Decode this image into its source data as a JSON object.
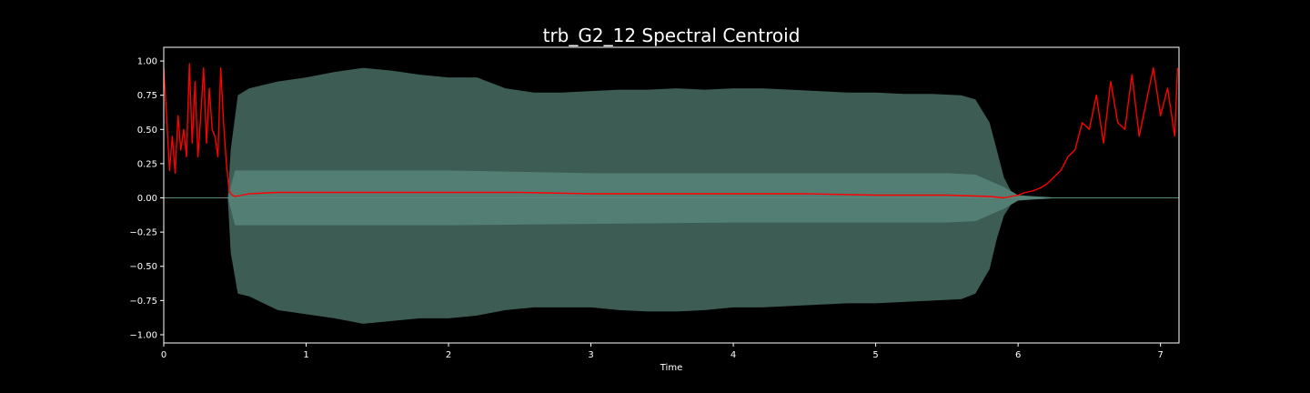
{
  "chart_data": {
    "type": "line",
    "title": "trb_G2_12 Spectral Centroid",
    "xlabel": "Time",
    "ylabel": "",
    "xlim": [
      0,
      7.13
    ],
    "ylim": [
      -1.06,
      1.1
    ],
    "grid": false,
    "x_ticks": [
      0,
      1,
      2,
      3,
      4,
      5,
      6,
      7
    ],
    "x_tick_labels": [
      "0",
      "1",
      "2",
      "3",
      "4",
      "5",
      "6",
      "7"
    ],
    "y_ticks": [
      1.0,
      0.75,
      0.5,
      0.25,
      0.0,
      -0.25,
      -0.5,
      -0.75,
      -1.0
    ],
    "y_tick_labels": [
      "1.00",
      "0.75",
      "0.50",
      "0.25",
      "0.00",
      "−0.25",
      "−0.50",
      "−0.75",
      "−1.00"
    ],
    "colors": {
      "background": "#000000",
      "waveform_outer": "#3c5c54",
      "waveform_inner": "#5a8a7e",
      "centroid": "#ff0000",
      "axes": "#ffffff"
    },
    "series": [
      {
        "kind": "waveform_envelope",
        "color": "#3c5c54",
        "x": [
          0,
          0.45,
          0.47,
          0.52,
          0.6,
          0.8,
          1.0,
          1.2,
          1.4,
          1.6,
          1.8,
          2.0,
          2.2,
          2.4,
          2.6,
          2.8,
          3.0,
          3.2,
          3.4,
          3.6,
          3.8,
          4.0,
          4.2,
          4.4,
          4.6,
          4.8,
          5.0,
          5.2,
          5.4,
          5.6,
          5.7,
          5.8,
          5.85,
          5.9,
          5.95,
          6.0,
          6.1,
          6.3,
          7.13
        ],
        "upper": [
          0,
          0,
          0.35,
          0.75,
          0.8,
          0.85,
          0.88,
          0.92,
          0.95,
          0.93,
          0.9,
          0.88,
          0.88,
          0.8,
          0.77,
          0.77,
          0.78,
          0.79,
          0.79,
          0.8,
          0.79,
          0.8,
          0.8,
          0.79,
          0.78,
          0.77,
          0.77,
          0.76,
          0.76,
          0.75,
          0.72,
          0.55,
          0.35,
          0.15,
          0.05,
          0.02,
          0.01,
          0.0,
          0
        ],
        "lower": [
          0,
          0,
          -0.4,
          -0.7,
          -0.72,
          -0.82,
          -0.85,
          -0.88,
          -0.92,
          -0.9,
          -0.88,
          -0.88,
          -0.86,
          -0.82,
          -0.8,
          -0.8,
          -0.8,
          -0.82,
          -0.83,
          -0.83,
          -0.82,
          -0.8,
          -0.8,
          -0.79,
          -0.78,
          -0.77,
          -0.77,
          -0.76,
          -0.75,
          -0.74,
          -0.7,
          -0.52,
          -0.3,
          -0.13,
          -0.05,
          -0.02,
          -0.01,
          0.0,
          0
        ]
      },
      {
        "kind": "waveform_inner",
        "color": "#5a8a7e",
        "x": [
          0,
          0.45,
          0.5,
          1.0,
          2.0,
          3.0,
          4.0,
          5.0,
          5.5,
          5.7,
          5.9,
          6.0,
          6.3,
          7.13
        ],
        "upper": [
          0,
          0,
          0.2,
          0.2,
          0.2,
          0.18,
          0.18,
          0.18,
          0.18,
          0.17,
          0.08,
          0.02,
          0.0,
          0
        ],
        "lower": [
          0,
          0,
          -0.2,
          -0.2,
          -0.2,
          -0.19,
          -0.18,
          -0.18,
          -0.18,
          -0.17,
          -0.08,
          -0.02,
          0.0,
          0
        ]
      },
      {
        "name": "",
        "kind": "spectral_centroid",
        "color": "#ff0000",
        "x": [
          0.0,
          0.02,
          0.04,
          0.06,
          0.08,
          0.1,
          0.12,
          0.14,
          0.16,
          0.18,
          0.2,
          0.22,
          0.24,
          0.26,
          0.28,
          0.3,
          0.32,
          0.34,
          0.36,
          0.38,
          0.4,
          0.42,
          0.44,
          0.46,
          0.48,
          0.5,
          0.6,
          0.8,
          1.0,
          1.2,
          1.5,
          2.0,
          2.5,
          3.0,
          3.5,
          4.0,
          4.5,
          5.0,
          5.5,
          5.8,
          5.9,
          5.95,
          6.0,
          6.05,
          6.1,
          6.15,
          6.2,
          6.25,
          6.3,
          6.35,
          6.4,
          6.45,
          6.5,
          6.55,
          6.6,
          6.65,
          6.7,
          6.75,
          6.8,
          6.85,
          6.9,
          6.95,
          7.0,
          7.05,
          7.1,
          7.12
        ],
        "y": [
          0.95,
          0.6,
          0.2,
          0.45,
          0.18,
          0.6,
          0.35,
          0.5,
          0.3,
          0.98,
          0.4,
          0.85,
          0.3,
          0.6,
          0.95,
          0.4,
          0.8,
          0.5,
          0.45,
          0.3,
          0.95,
          0.55,
          0.25,
          0.05,
          0.02,
          0.01,
          0.03,
          0.04,
          0.04,
          0.04,
          0.04,
          0.04,
          0.04,
          0.03,
          0.03,
          0.03,
          0.03,
          0.02,
          0.02,
          0.01,
          0.0,
          0.01,
          0.02,
          0.04,
          0.05,
          0.07,
          0.1,
          0.15,
          0.2,
          0.3,
          0.35,
          0.55,
          0.5,
          0.75,
          0.4,
          0.85,
          0.55,
          0.5,
          0.9,
          0.45,
          0.7,
          0.95,
          0.6,
          0.8,
          0.45,
          0.95
        ]
      }
    ]
  }
}
